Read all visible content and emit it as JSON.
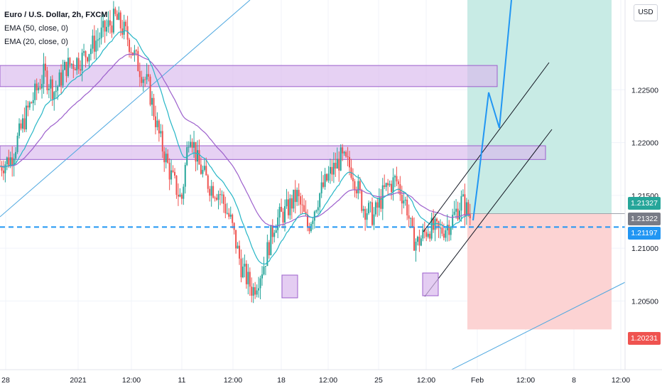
{
  "legend": {
    "title": "Euro / U.S. Dollar, 2h, FXCM",
    "ema50": "EMA (50, close, 0)",
    "ema20": "EMA (20, close, 0)"
  },
  "currency": "USD",
  "colors": {
    "up": "#26a69a",
    "down": "#ef5350",
    "ema50": "#9c5fcc",
    "ema20": "#26b6c6",
    "zone": "#d9b8ec",
    "profit": "#c8ebe5",
    "loss": "#fcd3d3",
    "projection": "#2196f3"
  },
  "chart_data": {
    "type": "candlestick",
    "title": "Euro / U.S. Dollar, 2h, FXCM",
    "x_ticks": [
      "28",
      "2021",
      "12:00",
      "11",
      "12:00",
      "18",
      "12:00",
      "25",
      "12:00",
      "Feb",
      "12:00",
      "8",
      "12:00"
    ],
    "y_ticks": [
      1.225,
      1.22,
      1.215,
      1.21,
      1.205
    ],
    "ylim": [
      1.1985,
      1.2335
    ],
    "price_labels": [
      {
        "value": "1.21327",
        "color": "#26a69a"
      },
      {
        "value": "1.21322",
        "color": "#787b86"
      },
      {
        "value": "1.21197",
        "color": "#2196f3"
      },
      {
        "value": "1.20231",
        "color": "#ef5350"
      }
    ],
    "indicators": [
      "EMA (50, close, 0)",
      "EMA (20, close, 0)"
    ],
    "resistance_zones": [
      [
        1.2253,
        1.2273
      ],
      [
        1.2184,
        1.2197
      ]
    ],
    "support_markers": [
      1.2053,
      1.2055
    ],
    "horizontal_level": 1.212,
    "position": {
      "entry": 1.21327,
      "target": 1.2335,
      "stop": 1.20231
    },
    "path_points": [
      [
        0.0,
        1.2178
      ],
      [
        0.02,
        1.2185
      ],
      [
        0.05,
        1.223
      ],
      [
        0.08,
        1.2265
      ],
      [
        0.1,
        1.2248
      ],
      [
        0.12,
        1.2272
      ],
      [
        0.15,
        1.228
      ],
      [
        0.18,
        1.23
      ],
      [
        0.21,
        1.2318
      ],
      [
        0.23,
        1.2302
      ],
      [
        0.25,
        1.2275
      ],
      [
        0.27,
        1.2253
      ],
      [
        0.29,
        1.2205
      ],
      [
        0.31,
        1.217
      ],
      [
        0.33,
        1.2145
      ],
      [
        0.345,
        1.2215
      ],
      [
        0.36,
        1.218
      ],
      [
        0.38,
        1.216
      ],
      [
        0.4,
        1.2152
      ],
      [
        0.42,
        1.2125
      ],
      [
        0.44,
        1.208
      ],
      [
        0.46,
        1.206
      ],
      [
        0.48,
        1.2085
      ],
      [
        0.5,
        1.2125
      ],
      [
        0.52,
        1.2135
      ],
      [
        0.54,
        1.215
      ],
      [
        0.56,
        1.212
      ],
      [
        0.58,
        1.215
      ],
      [
        0.6,
        1.217
      ],
      [
        0.62,
        1.2185
      ],
      [
        0.64,
        1.2175
      ],
      [
        0.66,
        1.214
      ],
      [
        0.68,
        1.213
      ],
      [
        0.7,
        1.2155
      ],
      [
        0.72,
        1.2165
      ],
      [
        0.74,
        1.214
      ],
      [
        0.75,
        1.211
      ],
      [
        0.76,
        1.2105
      ],
      [
        0.78,
        1.212
      ],
      [
        0.8,
        1.2115
      ],
      [
        0.82,
        1.2125
      ],
      [
        0.84,
        1.2145
      ],
      [
        0.855,
        1.213
      ]
    ]
  }
}
